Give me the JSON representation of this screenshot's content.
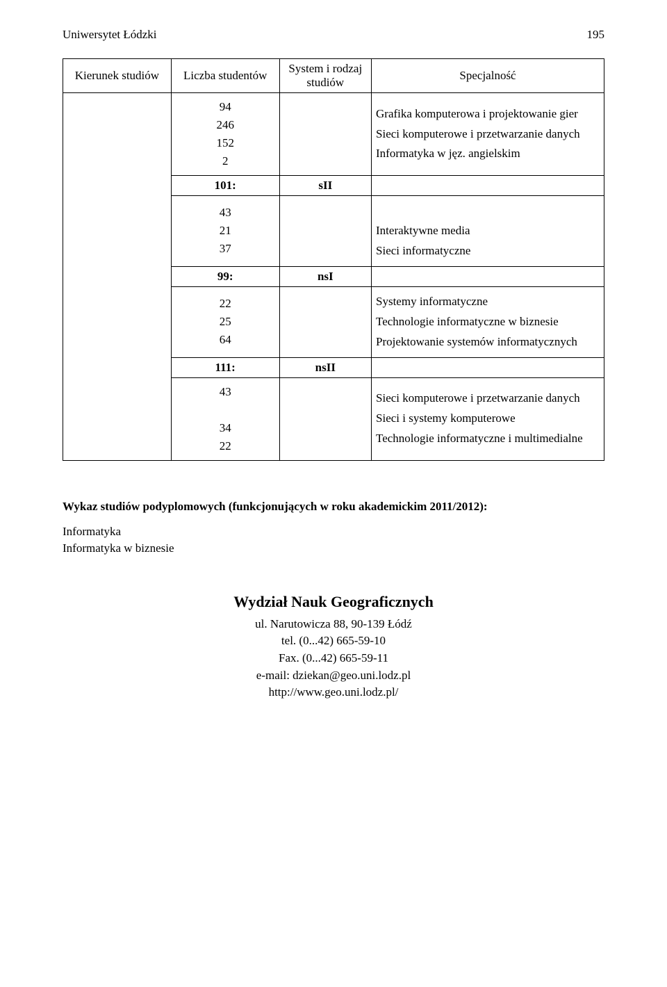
{
  "header": {
    "title": "Uniwersytet Łódzki",
    "page_number": "195"
  },
  "table": {
    "columns": [
      "Kierunek studiów",
      "Liczba studentów",
      "System i rodzaj studiów",
      "Specjalność"
    ],
    "groups": [
      {
        "counts": [
          "94",
          "246",
          "152",
          "2"
        ],
        "specs": [
          "Grafika komputerowa i projektowanie gier",
          "Sieci komputerowe i przetwarzanie danych",
          "Informatyka w jęz. angielskim"
        ],
        "summary_count": "101:",
        "summary_sys": "sII"
      },
      {
        "counts": [
          "43",
          "21",
          "37"
        ],
        "specs": [
          "Interaktywne media",
          "Sieci informatyczne"
        ],
        "summary_count": "99:",
        "summary_sys": "nsI"
      },
      {
        "counts": [
          "22",
          "25",
          "64"
        ],
        "specs": [
          "Systemy informatyczne",
          "Technologie informatyczne w biznesie",
          "Projektowanie systemów informatycznych"
        ],
        "summary_count": "111:",
        "summary_sys": "nsII"
      },
      {
        "counts": [
          "43",
          "34",
          "22"
        ],
        "specs": [
          "Sieci komputerowe i przetwarzanie danych",
          "Sieci i systemy komputerowe",
          "Technologie informatyczne i multimedialne"
        ]
      }
    ]
  },
  "postgrad": {
    "title": "Wykaz studiów podyplomowych (funkcjonujących w roku akademickim 2011/2012):",
    "items": [
      "Informatyka",
      "Informatyka w biznesie"
    ]
  },
  "dept": {
    "name": "Wydział Nauk Geograficznych",
    "lines": [
      "ul. Narutowicza 88, 90-139 Łódź",
      "tel. (0...42) 665-59-10",
      "Fax. (0...42) 665-59-11",
      "e-mail: dziekan@geo.uni.lodz.pl",
      "http://www.geo.uni.lodz.pl/"
    ]
  }
}
